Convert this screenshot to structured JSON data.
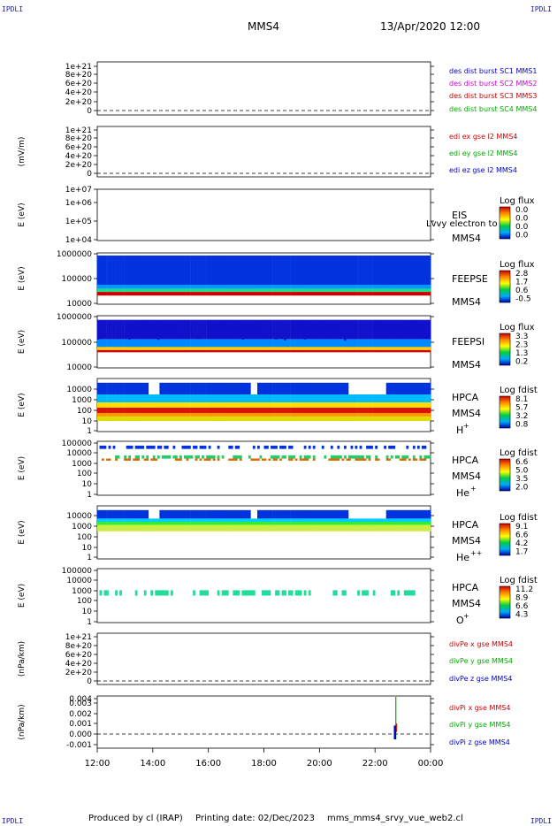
{
  "corner_label": "IPDLI",
  "header": {
    "mission": "MMS4",
    "date": "13/Apr/2020 12:00"
  },
  "footer": {
    "producer": "Produced by cl (IRAP)",
    "printing": "Printing date: 02/Dec/2023",
    "file": "mms_mms4_srvy_vue_web2.cl"
  },
  "colors": {
    "des1": "#0000cc",
    "des2": "#cc00cc",
    "des3": "#cc0000",
    "des4": "#00aa00",
    "red": "#cc0000",
    "green": "#00aa00",
    "blue": "#0000cc"
  },
  "time_ticks": [
    "12:00",
    "14:00",
    "16:00",
    "18:00",
    "20:00",
    "22:00",
    "00:00"
  ],
  "chart_data": [
    {
      "type": "line",
      "ylabel": "",
      "yticks": [
        "0",
        "2e+20",
        "4e+20",
        "6e+20",
        "8e+20",
        "1e+21"
      ],
      "series": [
        {
          "name": "des dist burst SC1 MMS1"
        },
        {
          "name": "des dist burst SC2 MMS2"
        },
        {
          "name": "des dist burst SC3 MMS3"
        },
        {
          "name": "des dist burst SC4 MMS4"
        }
      ]
    },
    {
      "type": "line",
      "ylabel": "(mV/m)",
      "yticks": [
        "0",
        "2e+20",
        "4e+20",
        "6e+20",
        "8e+20",
        "1e+21"
      ],
      "series": [
        {
          "name": "edi ex gse l2 MMS4"
        },
        {
          "name": "edi ey gse l2 MMS4"
        },
        {
          "name": "edi ez gse l2 MMS4"
        }
      ]
    },
    {
      "type": "heatmap",
      "ylabel": "E (eV)",
      "yticks": [
        "1e+04",
        "1e+05",
        "1e+06",
        "1e+07"
      ],
      "instrument": "EIS",
      "spacecraft": "MMS4",
      "overlay": "Lvvy electron to",
      "colorbar": {
        "title": "Log flux",
        "ticks": [
          "0.0",
          "0.0",
          "0.0",
          "0.0"
        ]
      }
    },
    {
      "type": "heatmap",
      "ylabel": "E (eV)",
      "yticks": [
        "10000",
        "100000",
        "1000000"
      ],
      "instrument": "FEEPSE",
      "spacecraft": "MMS4",
      "colorbar": {
        "title": "Log flux",
        "ticks": [
          "2.8",
          "1.7",
          "0.6",
          "-0.5"
        ]
      }
    },
    {
      "type": "heatmap",
      "ylabel": "E (eV)",
      "yticks": [
        "10000",
        "100000",
        "1000000"
      ],
      "instrument": "FEEPSI",
      "spacecraft": "MMS4",
      "colorbar": {
        "title": "Log flux",
        "ticks": [
          "3.3",
          "2.3",
          "1.3",
          "0.2"
        ]
      }
    },
    {
      "type": "heatmap",
      "ylabel": "E (eV)",
      "yticks": [
        "1",
        "10",
        "100",
        "1000",
        "10000"
      ],
      "instrument": "HPCA",
      "spacecraft": "MMS4",
      "species": "H",
      "charge": "+",
      "colorbar": {
        "title": "Log fdist",
        "ticks": [
          "8.1",
          "5.7",
          "3.2",
          "0.8"
        ]
      }
    },
    {
      "type": "heatmap",
      "ylabel": "E (eV)",
      "yticks": [
        "1",
        "10",
        "100",
        "1000",
        "10000",
        "100000"
      ],
      "instrument": "HPCA",
      "spacecraft": "MMS4",
      "species": "He",
      "charge": "+",
      "colorbar": {
        "title": "Log fdist",
        "ticks": [
          "6.6",
          "5.0",
          "3.5",
          "2.0"
        ]
      }
    },
    {
      "type": "heatmap",
      "ylabel": "E (eV)",
      "yticks": [
        "1",
        "10",
        "100",
        "1000",
        "10000"
      ],
      "instrument": "HPCA",
      "spacecraft": "MMS4",
      "species": "He",
      "charge": "++",
      "colorbar": {
        "title": "Log fdist",
        "ticks": [
          "9.1",
          "6.6",
          "4.2",
          "1.7"
        ]
      }
    },
    {
      "type": "heatmap",
      "ylabel": "E (eV)",
      "yticks": [
        "1",
        "10",
        "100",
        "1000",
        "10000",
        "100000"
      ],
      "instrument": "HPCA",
      "spacecraft": "MMS4",
      "species": "O",
      "charge": "+",
      "colorbar": {
        "title": "Log fdist",
        "ticks": [
          "11.2",
          "8.9",
          "6.6",
          "4.3"
        ]
      }
    },
    {
      "type": "line",
      "ylabel": "(nPa/km)",
      "yticks": [
        "0",
        "2e+20",
        "4e+20",
        "6e+20",
        "8e+20",
        "1e+21"
      ],
      "series": [
        {
          "name": "divPe x gse MMS4"
        },
        {
          "name": "divPe y gse MMS4"
        },
        {
          "name": "divPe z gse MMS4"
        }
      ]
    },
    {
      "type": "line",
      "ylabel": "(nPa/km)",
      "yticks": [
        "-0.001",
        "0.000",
        "0.001",
        "0.002",
        "0.003",
        "0.004"
      ],
      "series": [
        {
          "name": "divPi x gse MMS4"
        },
        {
          "name": "divPi y gse MMS4"
        },
        {
          "name": "divPi z gse MMS4"
        }
      ],
      "spike": {
        "time": "22:45",
        "y_range": [
          -0.0005,
          0.0035
        ]
      }
    }
  ]
}
